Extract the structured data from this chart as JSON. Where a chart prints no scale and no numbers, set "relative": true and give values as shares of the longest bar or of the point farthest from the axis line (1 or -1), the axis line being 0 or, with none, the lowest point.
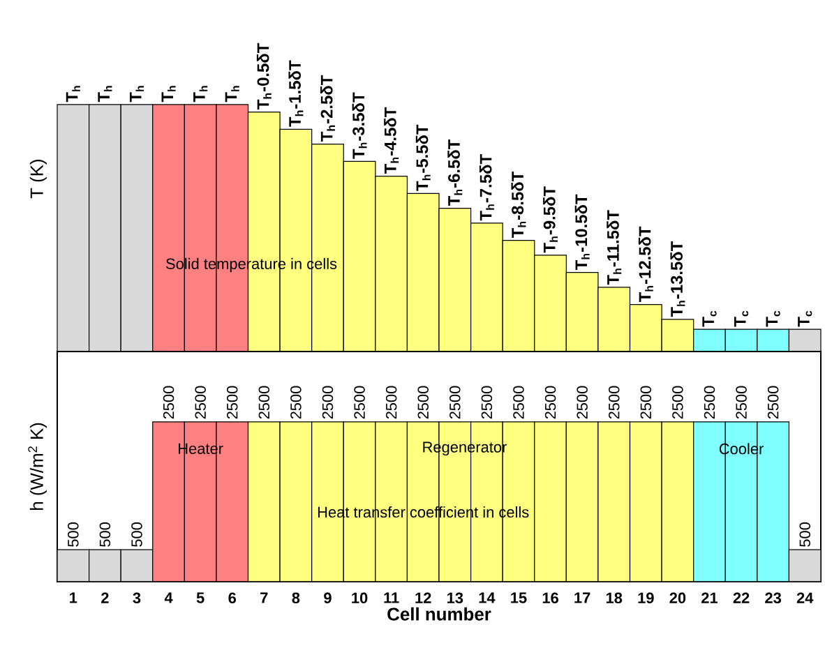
{
  "chart_data": [
    {
      "type": "bar",
      "relative": true,
      "tick_labels": false,
      "ylabel": "T (K)",
      "categories": [
        "1",
        "2",
        "3",
        "4",
        "5",
        "6",
        "7",
        "8",
        "9",
        "10",
        "11",
        "12",
        "13",
        "14",
        "15",
        "16",
        "17",
        "18",
        "19",
        "20",
        "21",
        "22",
        "23",
        "24"
      ],
      "values": [
        1,
        1,
        1,
        1,
        1,
        1,
        0.97,
        0.9,
        0.84,
        0.77,
        0.71,
        0.64,
        0.58,
        0.52,
        0.45,
        0.39,
        0.32,
        0.26,
        0.19,
        0.13,
        0.09,
        0.09,
        0.09,
        0.09
      ],
      "colors": [
        "#d9d9d9",
        "#d9d9d9",
        "#d9d9d9",
        "#ff8080",
        "#ff8080",
        "#ff8080",
        "#ffff80",
        "#ffff80",
        "#ffff80",
        "#ffff80",
        "#ffff80",
        "#ffff80",
        "#ffff80",
        "#ffff80",
        "#ffff80",
        "#ffff80",
        "#ffff80",
        "#ffff80",
        "#ffff80",
        "#ffff80",
        "#80ffff",
        "#80ffff",
        "#80ffff",
        "#d9d9d9"
      ],
      "annotations": [
        "Solid temperature in cells",
        {
          "text": "T$_{h}$",
          "x": "1",
          "y": 1
        },
        {
          "text": "T$_{h}$",
          "x": "2",
          "y": 1
        },
        {
          "text": "T$_{h}$",
          "x": "3",
          "y": 1
        },
        {
          "text": "T$_{h}$",
          "x": "4",
          "y": 1
        },
        {
          "text": "T$_{h}$",
          "x": "5",
          "y": 1
        },
        {
          "text": "T$_{h}$",
          "x": "6",
          "y": 1
        },
        {
          "text": "T$_{h}$-0.5δT",
          "x": "7",
          "y": 0.97
        },
        {
          "text": "T$_{h}$-1.5δT",
          "x": "8",
          "y": 0.9
        },
        {
          "text": "T$_{h}$-2.5δT",
          "x": "9",
          "y": 0.84
        },
        {
          "text": "T$_{h}$-3.5δT",
          "x": "10",
          "y": 0.77
        },
        {
          "text": "T$_{h}$-4.5δT",
          "x": "11",
          "y": 0.71
        },
        {
          "text": "T$_{h}$-5.5δT",
          "x": "12",
          "y": 0.64
        },
        {
          "text": "T$_{h}$-6.5δT",
          "x": "13",
          "y": 0.58
        },
        {
          "text": "T$_{h}$-7.5δT",
          "x": "14",
          "y": 0.52
        },
        {
          "text": "T$_{h}$-8.5δT",
          "x": "15",
          "y": 0.45
        },
        {
          "text": "T$_{h}$-9.5δT",
          "x": "16",
          "y": 0.39
        },
        {
          "text": "T$_{h}$-10.5δT",
          "x": "17",
          "y": 0.32
        },
        {
          "text": "T$_{h}$-11.5δT",
          "x": "18",
          "y": 0.26
        },
        {
          "text": "T$_{h}$-12.5δT",
          "x": "19",
          "y": 0.19
        },
        {
          "text": "T$_{h}$-13.5δT",
          "x": "20",
          "y": 0.13
        },
        {
          "text": "T$_{c}$",
          "x": "21",
          "y": 0.09
        },
        {
          "text": "T$_{c}$",
          "x": "22",
          "y": 0.09
        },
        {
          "text": "T$_{c}$",
          "x": "23",
          "y": 0.09
        },
        {
          "text": "T$_{c}$",
          "x": "24",
          "y": 0.09
        }
      ]
    },
    {
      "type": "bar",
      "tick_labels": "x",
      "xlabel": "Cell number",
      "ylabel": "h (W/m$^{2}$ K)",
      "ylim": [
        0,
        3600
      ],
      "categories": [
        "1",
        "2",
        "3",
        "4",
        "5",
        "6",
        "7",
        "8",
        "9",
        "10",
        "11",
        "12",
        "13",
        "14",
        "15",
        "16",
        "17",
        "18",
        "19",
        "20",
        "21",
        "22",
        "23",
        "24"
      ],
      "values": [
        500,
        500,
        500,
        2500,
        2500,
        2500,
        2500,
        2500,
        2500,
        2500,
        2500,
        2500,
        2500,
        2500,
        2500,
        2500,
        2500,
        2500,
        2500,
        2500,
        2500,
        2500,
        2500,
        500
      ],
      "colors": [
        "#d9d9d9",
        "#d9d9d9",
        "#d9d9d9",
        "#ff8080",
        "#ff8080",
        "#ff8080",
        "#ffff80",
        "#ffff80",
        "#ffff80",
        "#ffff80",
        "#ffff80",
        "#ffff80",
        "#ffff80",
        "#ffff80",
        "#ffff80",
        "#ffff80",
        "#ffff80",
        "#ffff80",
        "#ffff80",
        "#ffff80",
        "#80ffff",
        "#80ffff",
        "#80ffff",
        "#d9d9d9"
      ],
      "data_labels": true,
      "annotations": [
        "Heater",
        "Regenerator",
        "Cooler",
        "Heat transfer coefficient in cells"
      ]
    }
  ]
}
